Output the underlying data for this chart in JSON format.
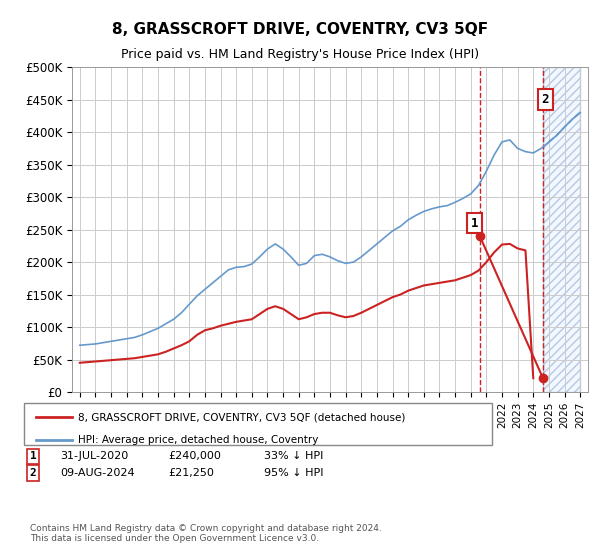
{
  "title": "8, GRASSCROFT DRIVE, COVENTRY, CV3 5QF",
  "subtitle": "Price paid vs. HM Land Registry's House Price Index (HPI)",
  "hpi_years": [
    1995,
    1995.5,
    1996,
    1996.5,
    1997,
    1997.5,
    1998,
    1998.5,
    1999,
    1999.5,
    2000,
    2000.5,
    2001,
    2001.5,
    2002,
    2002.5,
    2003,
    2003.5,
    2004,
    2004.5,
    2005,
    2005.5,
    2006,
    2006.5,
    2007,
    2007.5,
    2008,
    2008.5,
    2009,
    2009.5,
    2010,
    2010.5,
    2011,
    2011.5,
    2012,
    2012.5,
    2013,
    2013.5,
    2014,
    2014.5,
    2015,
    2015.5,
    2016,
    2016.5,
    2017,
    2017.5,
    2018,
    2018.5,
    2019,
    2019.5,
    2020,
    2020.5,
    2021,
    2021.5,
    2022,
    2022.5,
    2023,
    2023.5,
    2024,
    2024.5,
    2025,
    2025.5,
    2026,
    2026.5,
    2027
  ],
  "hpi_values": [
    72000,
    73000,
    74000,
    76000,
    78000,
    80000,
    82000,
    84000,
    88000,
    93000,
    98000,
    105000,
    112000,
    122000,
    135000,
    148000,
    158000,
    168000,
    178000,
    188000,
    192000,
    193000,
    197000,
    208000,
    220000,
    228000,
    220000,
    208000,
    195000,
    198000,
    210000,
    212000,
    208000,
    202000,
    198000,
    200000,
    208000,
    218000,
    228000,
    238000,
    248000,
    255000,
    265000,
    272000,
    278000,
    282000,
    285000,
    287000,
    292000,
    298000,
    305000,
    318000,
    340000,
    365000,
    385000,
    388000,
    375000,
    370000,
    368000,
    375000,
    385000,
    395000,
    408000,
    420000,
    430000
  ],
  "price_years": [
    1995,
    1995.5,
    1996,
    1996.5,
    1997,
    1997.5,
    1998,
    1998.5,
    1999,
    1999.5,
    2000,
    2000.5,
    2001,
    2001.5,
    2002,
    2002.5,
    2003,
    2003.5,
    2004,
    2004.5,
    2005,
    2005.5,
    2006,
    2006.5,
    2007,
    2007.5,
    2008,
    2008.5,
    2009,
    2009.5,
    2010,
    2010.5,
    2011,
    2011.5,
    2012,
    2012.5,
    2013,
    2013.5,
    2014,
    2014.5,
    2015,
    2015.5,
    2016,
    2016.5,
    2017,
    2017.5,
    2018,
    2018.5,
    2019,
    2019.5,
    2020,
    2020.5,
    2021,
    2021.5,
    2022,
    2022.5,
    2023,
    2023.5,
    2024
  ],
  "price_values": [
    45000,
    46000,
    47000,
    48000,
    49000,
    50000,
    51000,
    52000,
    54000,
    56000,
    58000,
    62000,
    67000,
    72000,
    78000,
    88000,
    95000,
    98000,
    102000,
    105000,
    108000,
    110000,
    112000,
    120000,
    128000,
    132000,
    128000,
    120000,
    112000,
    115000,
    120000,
    122000,
    122000,
    118000,
    115000,
    117000,
    122000,
    128000,
    134000,
    140000,
    146000,
    150000,
    156000,
    160000,
    164000,
    166000,
    168000,
    170000,
    172000,
    176000,
    180000,
    187000,
    200000,
    215000,
    227000,
    228000,
    221000,
    218000,
    21250
  ],
  "event1_year": 2020.58,
  "event1_value": 240000,
  "event1_label": "1",
  "event2_year": 2024.62,
  "event2_value": 21250,
  "event2_label": "2",
  "vline1_year": 2020.58,
  "vline2_year": 2024.62,
  "ylim": [
    0,
    500000
  ],
  "yticks": [
    0,
    50000,
    100000,
    150000,
    200000,
    250000,
    300000,
    350000,
    400000,
    450000,
    500000
  ],
  "ytick_labels": [
    "£0",
    "£50K",
    "£100K",
    "£150K",
    "£200K",
    "£250K",
    "£300K",
    "£350K",
    "£400K",
    "£450K",
    "£500K"
  ],
  "xtick_years": [
    1995,
    1996,
    1997,
    1998,
    1999,
    2000,
    2001,
    2002,
    2003,
    2004,
    2005,
    2006,
    2007,
    2008,
    2009,
    2010,
    2011,
    2012,
    2013,
    2014,
    2015,
    2016,
    2017,
    2018,
    2019,
    2020,
    2021,
    2022,
    2023,
    2024,
    2025,
    2026,
    2027
  ],
  "hpi_color": "#6699cc",
  "price_color": "#cc2222",
  "vline_color": "#cc2222",
  "hatch_color": "#aabbdd",
  "bg_color": "#ffffff",
  "grid_color": "#cccccc",
  "legend1_label": "8, GRASSCROFT DRIVE, COVENTRY, CV3 5QF (detached house)",
  "legend2_label": "HPI: Average price, detached house, Coventry",
  "annot1": "31-JUL-2020",
  "annot1_price": "£240,000",
  "annot1_hpi": "33% ↓ HPI",
  "annot2": "09-AUG-2024",
  "annot2_price": "£21,250",
  "annot2_hpi": "95% ↓ HPI",
  "footer": "Contains HM Land Registry data © Crown copyright and database right 2024.\nThis data is licensed under the Open Government Licence v3.0."
}
